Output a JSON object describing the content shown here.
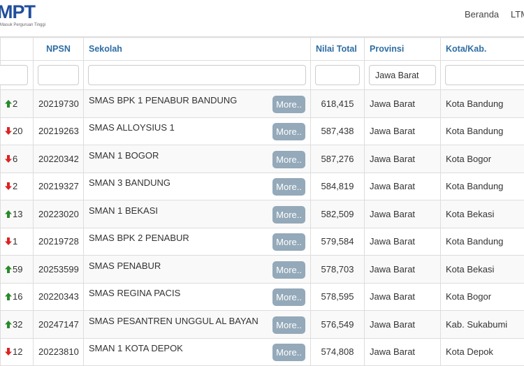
{
  "nav": {
    "logo": "MPT",
    "logo_sub": "Masuk Perguruan Tinggi",
    "links": [
      "Beranda",
      "LTM"
    ]
  },
  "table": {
    "headers": [
      "",
      "NPSN",
      "Sekolah",
      "Nilai Total",
      "Provinsi",
      "Kota/Kab."
    ],
    "filters": {
      "rank": "",
      "npsn": "",
      "sekolah": "",
      "nilai": "",
      "provinsi": "Jawa Barat",
      "kota": ""
    },
    "more_label": "More..",
    "rows": [
      {
        "dir": "up",
        "change": "2",
        "npsn": "20219730",
        "sekolah": "SMAS BPK 1 PENABUR BANDUNG",
        "nilai": "618,415",
        "provinsi": "Jawa Barat",
        "kota": "Kota Bandung"
      },
      {
        "dir": "down",
        "change": "20",
        "npsn": "20219263",
        "sekolah": "SMAS ALLOYSIUS 1",
        "nilai": "587,438",
        "provinsi": "Jawa Barat",
        "kota": "Kota Bandung"
      },
      {
        "dir": "down",
        "change": "6",
        "npsn": "20220342",
        "sekolah": "SMAN 1 BOGOR",
        "nilai": "587,276",
        "provinsi": "Jawa Barat",
        "kota": "Kota Bogor"
      },
      {
        "dir": "down",
        "change": "2",
        "npsn": "20219327",
        "sekolah": "SMAN 3 BANDUNG",
        "nilai": "584,819",
        "provinsi": "Jawa Barat",
        "kota": "Kota Bandung"
      },
      {
        "dir": "up",
        "change": "13",
        "npsn": "20223020",
        "sekolah": "SMAN 1 BEKASI",
        "nilai": "582,509",
        "provinsi": "Jawa Barat",
        "kota": "Kota Bekasi"
      },
      {
        "dir": "down",
        "change": "1",
        "npsn": "20219728",
        "sekolah": "SMAS BPK 2 PENABUR",
        "nilai": "579,584",
        "provinsi": "Jawa Barat",
        "kota": "Kota Bandung"
      },
      {
        "dir": "up",
        "change": "59",
        "npsn": "20253599",
        "sekolah": "SMAS PENABUR",
        "nilai": "578,703",
        "provinsi": "Jawa Barat",
        "kota": "Kota Bekasi"
      },
      {
        "dir": "up",
        "change": "16",
        "npsn": "20220343",
        "sekolah": "SMAS REGINA PACIS",
        "nilai": "578,595",
        "provinsi": "Jawa Barat",
        "kota": "Kota Bogor"
      },
      {
        "dir": "up",
        "change": "32",
        "npsn": "20247147",
        "sekolah": "SMAS PESANTREN UNGGUL AL BAYAN",
        "nilai": "576,549",
        "provinsi": "Jawa Barat",
        "kota": "Kab. Sukabumi"
      },
      {
        "dir": "down",
        "change": "12",
        "npsn": "20223810",
        "sekolah": "SMAN 1 KOTA DEPOK",
        "nilai": "574,808",
        "provinsi": "Jawa Barat",
        "kota": "Kota Depok"
      }
    ]
  }
}
